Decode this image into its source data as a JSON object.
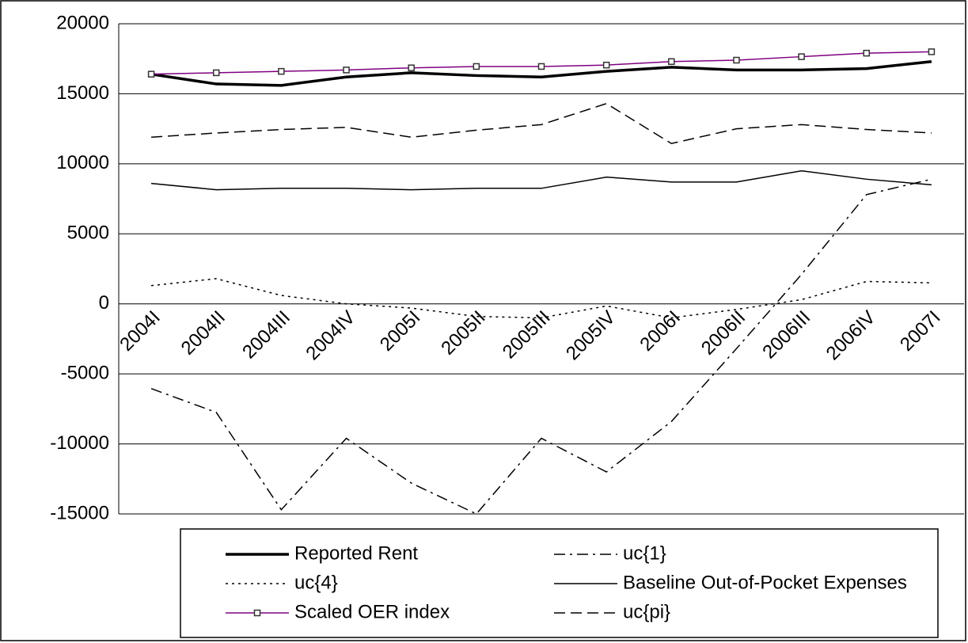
{
  "chart_data": {
    "type": "line",
    "categories": [
      "2004I",
      "2004II",
      "2004III",
      "2004IV",
      "2005I",
      "2005II",
      "2005III",
      "2005IV",
      "2006I",
      "2006II",
      "2006III",
      "2006IV",
      "2007I"
    ],
    "series": [
      {
        "name": "Reported Rent",
        "color": "#000000",
        "line_style": "bold",
        "values": [
          16400,
          15700,
          15600,
          16200,
          16500,
          16300,
          16200,
          16600,
          16900,
          16700,
          16700,
          16800,
          17300
        ]
      },
      {
        "name": "uc{1}",
        "color": "#000000",
        "line_style": "dash-dot",
        "values": [
          -6050,
          -7750,
          -14700,
          -9600,
          -12800,
          -15000,
          -9600,
          -12000,
          -8400,
          -3200,
          2100,
          7800,
          8900
        ]
      },
      {
        "name": "uc{4}",
        "color": "#000000",
        "line_style": "dotted",
        "values": [
          1300,
          1800,
          600,
          0,
          -300,
          -900,
          -1000,
          -150,
          -1000,
          -400,
          300,
          1600,
          1500
        ]
      },
      {
        "name": "Baseline Out-of-Pocket Expenses",
        "color": "#000000",
        "line_style": "solid",
        "values": [
          8600,
          8150,
          8250,
          8250,
          8150,
          8250,
          8250,
          9050,
          8700,
          8700,
          9500,
          8900,
          8500
        ]
      },
      {
        "name": "Scaled OER index",
        "color": "#800080",
        "line_style": "solid-marker",
        "values": [
          16400,
          16500,
          16600,
          16700,
          16850,
          16950,
          16950,
          17050,
          17300,
          17400,
          17650,
          17900,
          18000
        ]
      },
      {
        "name": "uc{pi}",
        "color": "#000000",
        "line_style": "dashed",
        "values": [
          11900,
          12200,
          12450,
          12600,
          11900,
          12400,
          12800,
          14300,
          11450,
          12500,
          12800,
          12450,
          12200
        ]
      }
    ],
    "ylim": [
      -15000,
      20000
    ],
    "yticks": [
      -15000,
      -10000,
      -5000,
      0,
      5000,
      10000,
      15000,
      20000
    ],
    "grid": true,
    "legend": "bottom"
  }
}
